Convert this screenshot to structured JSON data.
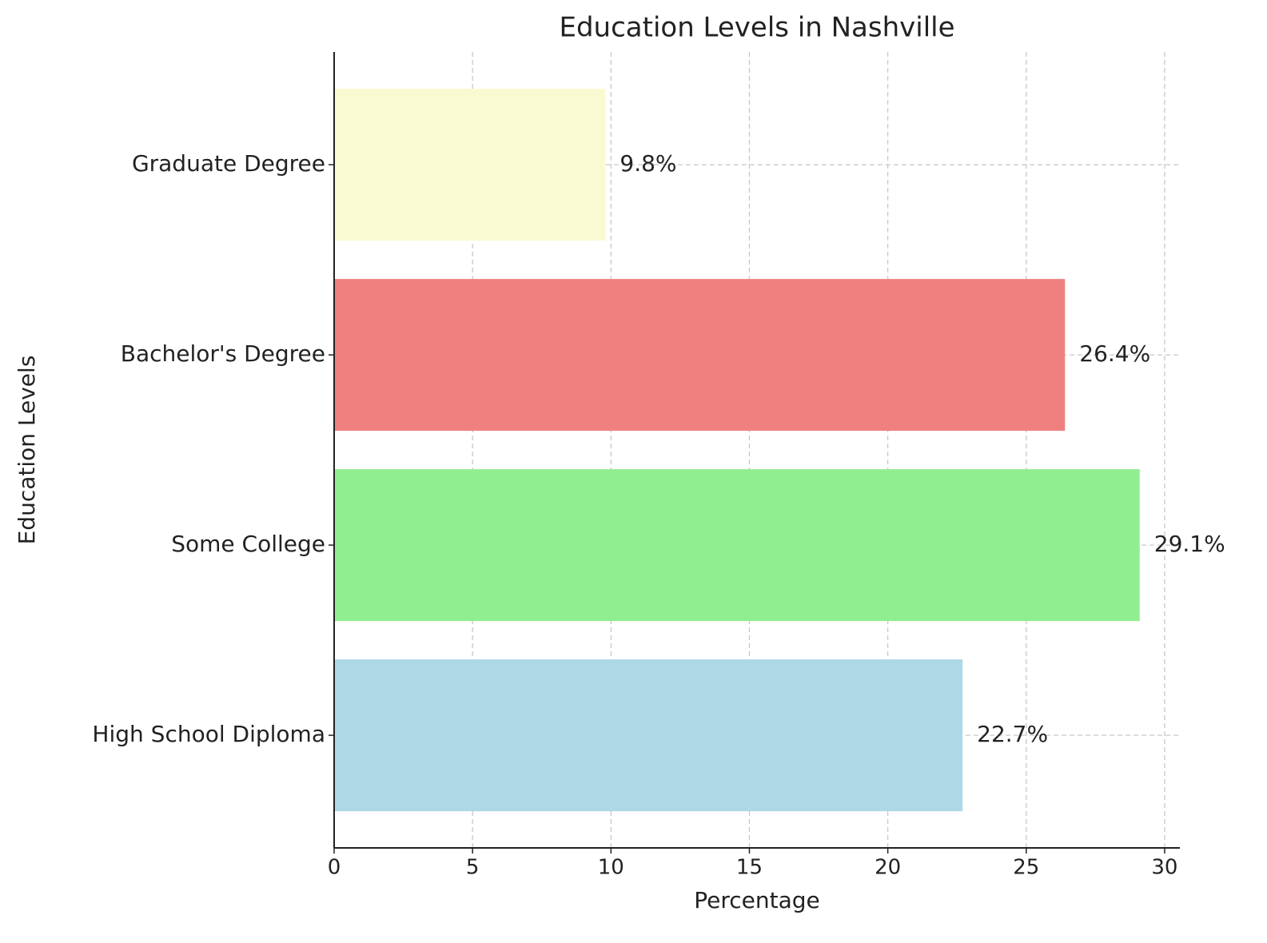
{
  "chart_data": {
    "type": "barh",
    "title": "Education Levels in Nashville",
    "xlabel": "Percentage",
    "ylabel": "Education Levels",
    "categories": [
      "High School Diploma",
      "Some College",
      "Bachelor's Degree",
      "Graduate Degree"
    ],
    "values": [
      22.7,
      29.1,
      26.4,
      9.8
    ],
    "value_labels": [
      "22.7%",
      "29.1%",
      "26.4%",
      "9.8%"
    ],
    "colors": [
      "#add8e6",
      "#90ee90",
      "#f08080",
      "#fafad2"
    ],
    "xlim": [
      0,
      30.55
    ],
    "xticks": [
      0,
      5,
      10,
      15,
      20,
      25,
      30
    ],
    "grid": true
  }
}
